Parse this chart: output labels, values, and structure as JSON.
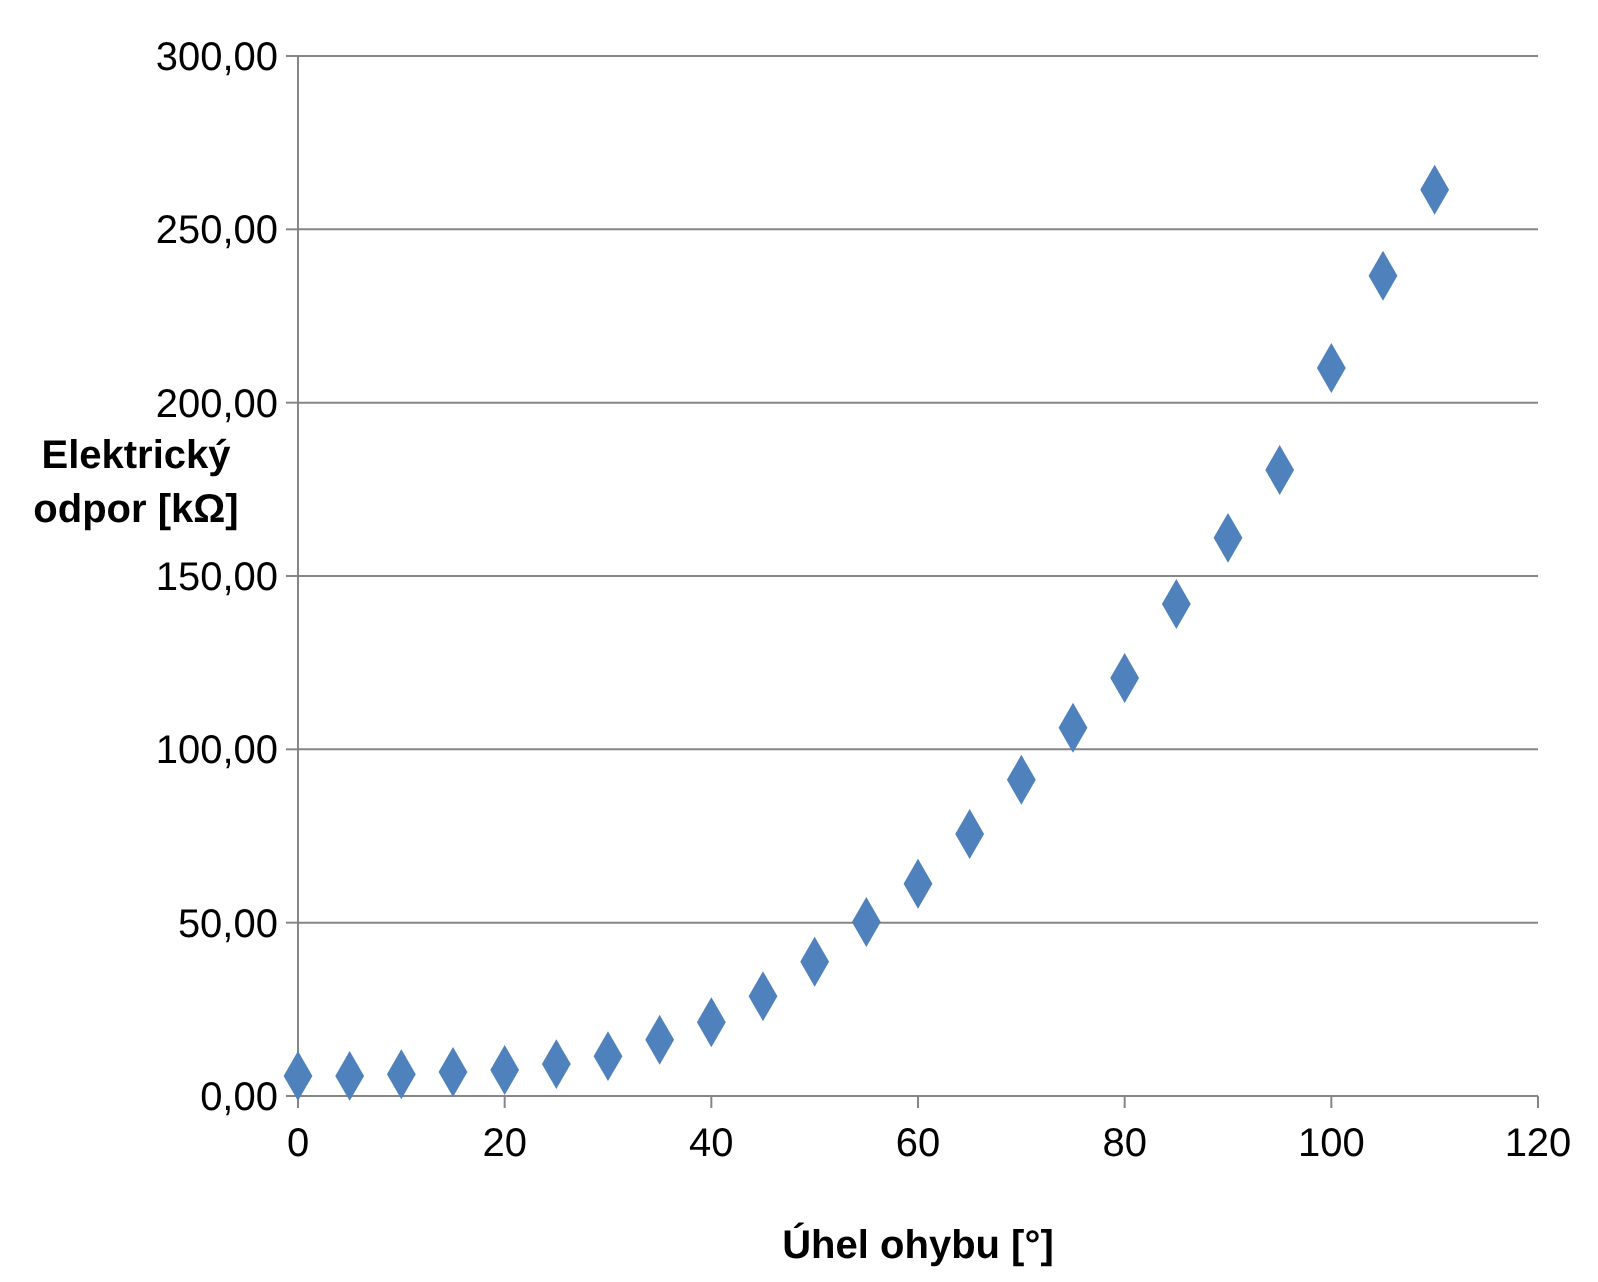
{
  "chart_data": {
    "type": "scatter",
    "xlabel": "Úhel ohybu [°]",
    "ylabel": "Elektrický odpor [kΩ]",
    "x": [
      0,
      5,
      10,
      15,
      20,
      25,
      30,
      35,
      40,
      45,
      50,
      55,
      60,
      65,
      70,
      75,
      80,
      85,
      90,
      95,
      100,
      105,
      110
    ],
    "series": [
      {
        "color": "#4f81bd",
        "values": [
          5.8,
          5.8,
          6.3,
          6.9,
          7.5,
          9.2,
          11.5,
          16.2,
          21.3,
          28.8,
          38.7,
          50.2,
          61.2,
          75.6,
          91.2,
          106.2,
          120.6,
          141.9,
          161,
          180.6,
          210,
          236.6,
          261.4
        ]
      }
    ],
    "xlim": [
      0,
      120
    ],
    "xticks": [
      0,
      20,
      40,
      60,
      80,
      100,
      120
    ],
    "ylim": [
      0,
      300
    ],
    "yticks": [
      {
        "value": 0,
        "label": "0,00"
      },
      {
        "value": 50,
        "label": "50,00"
      },
      {
        "value": 100,
        "label": "100,00"
      },
      {
        "value": 150,
        "label": "150,00"
      },
      {
        "value": 200,
        "label": "200,00"
      },
      {
        "value": 250,
        "label": "250,00"
      },
      {
        "value": 300,
        "label": "300,00"
      }
    ],
    "grid": "y",
    "marker": "diamond"
  }
}
